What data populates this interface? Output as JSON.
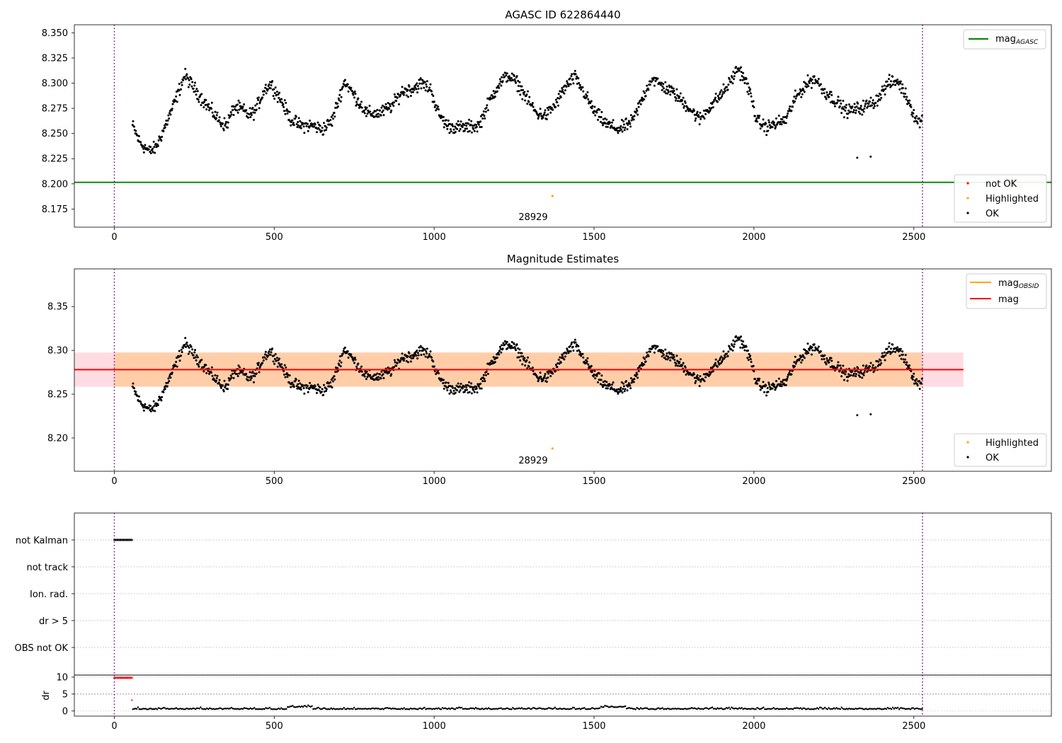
{
  "chart_data": [
    {
      "type": "scatter",
      "title": "AGASC ID 622864440",
      "xlim": [
        -125,
        2930
      ],
      "ylim": [
        8.157,
        8.358
      ],
      "xticks": [
        "0",
        "500",
        "1000",
        "1500",
        "2000",
        "2500"
      ],
      "yticks": [
        "8.175",
        "8.200",
        "8.225",
        "8.250",
        "8.275",
        "8.300",
        "8.325",
        "8.350"
      ],
      "xtick_values": [
        0,
        500,
        1000,
        1500,
        2000,
        2500
      ],
      "ytick_values": [
        8.175,
        8.2,
        8.225,
        8.25,
        8.275,
        8.3,
        8.325,
        8.35
      ],
      "vlines": [
        0,
        2527
      ],
      "hline": {
        "name": "mag",
        "subscript": "AGASC",
        "y": 8.2015,
        "color": "#008000"
      },
      "highlight": {
        "x": 1370,
        "y": 8.188,
        "color": "#ffa500"
      },
      "outliers": [
        [
          2323,
          8.226
        ],
        [
          2365,
          8.227
        ]
      ],
      "annotation": "28929",
      "legend_top": "top-right",
      "legend_bottom": {
        "placement": "bottom-right",
        "entries": [
          "not OK",
          "Highlighted",
          "OK"
        ]
      },
      "series_colors": {
        "not OK": "#ff0000",
        "Highlighted": "#ffa500",
        "OK": "#000000"
      },
      "series_ok_keypoints": [
        [
          57,
          8.258
        ],
        [
          80,
          8.241
        ],
        [
          110,
          8.232
        ],
        [
          130,
          8.236
        ],
        [
          160,
          8.258
        ],
        [
          190,
          8.282
        ],
        [
          220,
          8.308
        ],
        [
          245,
          8.297
        ],
        [
          275,
          8.284
        ],
        [
          300,
          8.274
        ],
        [
          330,
          8.262
        ],
        [
          350,
          8.258
        ],
        [
          375,
          8.276
        ],
        [
          400,
          8.274
        ],
        [
          420,
          8.268
        ],
        [
          440,
          8.272
        ],
        [
          470,
          8.294
        ],
        [
          490,
          8.299
        ],
        [
          520,
          8.284
        ],
        [
          550,
          8.265
        ],
        [
          580,
          8.258
        ],
        [
          620,
          8.258
        ],
        [
          650,
          8.254
        ],
        [
          680,
          8.262
        ],
        [
          700,
          8.282
        ],
        [
          720,
          8.302
        ],
        [
          750,
          8.288
        ],
        [
          790,
          8.27
        ],
        [
          830,
          8.27
        ],
        [
          870,
          8.278
        ],
        [
          900,
          8.292
        ],
        [
          930,
          8.294
        ],
        [
          960,
          8.3
        ],
        [
          990,
          8.294
        ],
        [
          1010,
          8.272
        ],
        [
          1040,
          8.258
        ],
        [
          1070,
          8.256
        ],
        [
          1100,
          8.256
        ],
        [
          1140,
          8.258
        ],
        [
          1170,
          8.28
        ],
        [
          1200,
          8.298
        ],
        [
          1230,
          8.308
        ],
        [
          1260,
          8.3
        ],
        [
          1290,
          8.285
        ],
        [
          1320,
          8.27
        ],
        [
          1350,
          8.268
        ],
        [
          1380,
          8.279
        ],
        [
          1410,
          8.296
        ],
        [
          1440,
          8.306
        ],
        [
          1470,
          8.29
        ],
        [
          1500,
          8.272
        ],
        [
          1540,
          8.259
        ],
        [
          1580,
          8.254
        ],
        [
          1620,
          8.262
        ],
        [
          1650,
          8.284
        ],
        [
          1680,
          8.305
        ],
        [
          1710,
          8.298
        ],
        [
          1750,
          8.29
        ],
        [
          1790,
          8.278
        ],
        [
          1830,
          8.264
        ],
        [
          1860,
          8.276
        ],
        [
          1890,
          8.286
        ],
        [
          1920,
          8.298
        ],
        [
          1950,
          8.315
        ],
        [
          1970,
          8.305
        ],
        [
          1990,
          8.288
        ],
        [
          2010,
          8.262
        ],
        [
          2040,
          8.256
        ],
        [
          2070,
          8.26
        ],
        [
          2100,
          8.264
        ],
        [
          2130,
          8.285
        ],
        [
          2160,
          8.298
        ],
        [
          2190,
          8.305
        ],
        [
          2220,
          8.292
        ],
        [
          2250,
          8.284
        ],
        [
          2290,
          8.272
        ],
        [
          2340,
          8.276
        ],
        [
          2380,
          8.282
        ],
        [
          2420,
          8.3
        ],
        [
          2450,
          8.302
        ],
        [
          2480,
          8.285
        ],
        [
          2510,
          8.262
        ],
        [
          2527,
          8.263
        ]
      ]
    },
    {
      "type": "scatter",
      "title": "Magnitude Estimates",
      "xlim": [
        -125,
        2930
      ],
      "ylim": [
        8.162,
        8.393
      ],
      "xticks": [
        "0",
        "500",
        "1000",
        "1500",
        "2000",
        "2500"
      ],
      "yticks": [
        "8.20",
        "8.25",
        "8.30",
        "8.35"
      ],
      "xtick_values": [
        0,
        500,
        1000,
        1500,
        2000,
        2500
      ],
      "ytick_values": [
        8.2,
        8.25,
        8.3,
        8.35
      ],
      "vlines": [
        0,
        2527
      ],
      "mag": {
        "name": "mag",
        "y": 8.278,
        "band": [
          8.2585,
          8.2975
        ],
        "x_range": [
          -125,
          2655
        ],
        "color": "#ff0000"
      },
      "mag_obsid": {
        "name": "mag",
        "subscript": "OBSID",
        "color": "#ffa500",
        "band": [
          8.2585,
          8.2975
        ],
        "x_range": [
          0,
          2527
        ]
      },
      "highlight": {
        "x": 1370,
        "y": 8.188,
        "color": "#ffa500"
      },
      "annotation": "28929",
      "legend_top": "top-right",
      "legend_bottom": {
        "placement": "bottom-right",
        "entries": [
          "Highlighted",
          "OK"
        ]
      }
    },
    {
      "type": "scatter",
      "title": "",
      "xlim": [
        -125,
        2930
      ],
      "categories": [
        "not Kalman",
        "not track",
        "Ion. rad.",
        "dr > 5",
        "OBS not OK"
      ],
      "flag_ranges": {
        "not Kalman": [
          0,
          55
        ]
      },
      "vlines": [
        0,
        2527
      ]
    },
    {
      "type": "scatter",
      "title": "",
      "ylabel": "dr",
      "xlim": [
        -125,
        2930
      ],
      "ylim": [
        -1.5,
        10.6
      ],
      "xticks": [
        "0",
        "500",
        "1000",
        "1500",
        "2000",
        "2500"
      ],
      "yticks": [
        "0",
        "5",
        "10"
      ],
      "xtick_values": [
        0,
        500,
        1000,
        1500,
        2000,
        2500
      ],
      "ytick_values": [
        0,
        5,
        10
      ],
      "hline": 5,
      "high_dr": {
        "x_range": [
          0,
          55
        ],
        "y": 9.8,
        "color": "#ff0000"
      },
      "isolated": {
        "x": 55,
        "y": 3.2,
        "color": "#ff0000"
      },
      "baseline": {
        "x_range": [
          58,
          2527
        ],
        "y": 0.5
      },
      "vlines": [
        0,
        2527
      ]
    }
  ]
}
